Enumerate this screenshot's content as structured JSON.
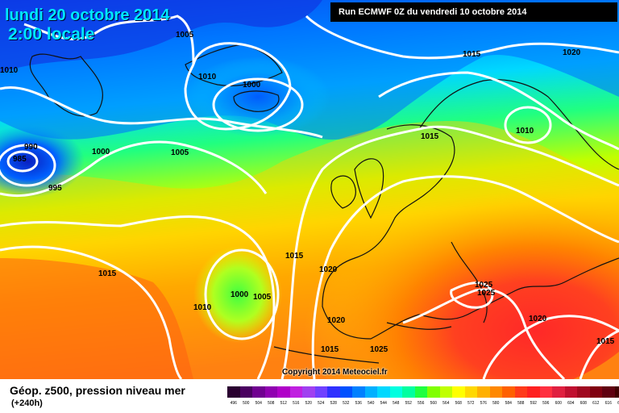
{
  "header": {
    "date_line": "lundi 20 octobre 2014",
    "time_line": "2:00 locale",
    "run_info": "Run ECMWF 0Z du vendredi 10 octobre 2014"
  },
  "isobar_labels": [
    "1005",
    "1020",
    "1015",
    "1010",
    "1010",
    "1000",
    "1015",
    "990",
    "985",
    "1000",
    "1005",
    "995",
    "1010",
    "1015",
    "1020",
    "1015",
    "1025",
    "1025",
    "1000",
    "1005",
    "1010",
    "1020",
    "1020",
    "1015",
    "1025",
    "1015"
  ],
  "copyright": "Copyright 2014 Meteociel.fr",
  "footer": {
    "title": "Géop. z500, pression niveau mer",
    "subtitle": "(+240h)"
  },
  "legend": {
    "colors": [
      "#2a0030",
      "#4a0060",
      "#700090",
      "#9000b0",
      "#b000c8",
      "#c020e0",
      "#a040f0",
      "#7040ff",
      "#3030ff",
      "#0050ff",
      "#0080ff",
      "#00b0ff",
      "#00d8ff",
      "#00ffe0",
      "#00ffa0",
      "#20ff40",
      "#80ff00",
      "#c0ff00",
      "#ffff00",
      "#ffd800",
      "#ffb000",
      "#ff8800",
      "#ff6000",
      "#ff3a1a",
      "#ff2020",
      "#ff3040",
      "#e02040",
      "#c01030",
      "#a00820",
      "#800010",
      "#600010",
      "#400000"
    ],
    "labels": [
      "496",
      "500",
      "504",
      "508",
      "512",
      "516",
      "520",
      "524",
      "528",
      "532",
      "536",
      "540",
      "544",
      "548",
      "552",
      "556",
      "560",
      "564",
      "568",
      "572",
      "576",
      "580",
      "584",
      "588",
      "592",
      "596",
      "600",
      "604",
      "608",
      "612",
      "616",
      "620"
    ]
  }
}
